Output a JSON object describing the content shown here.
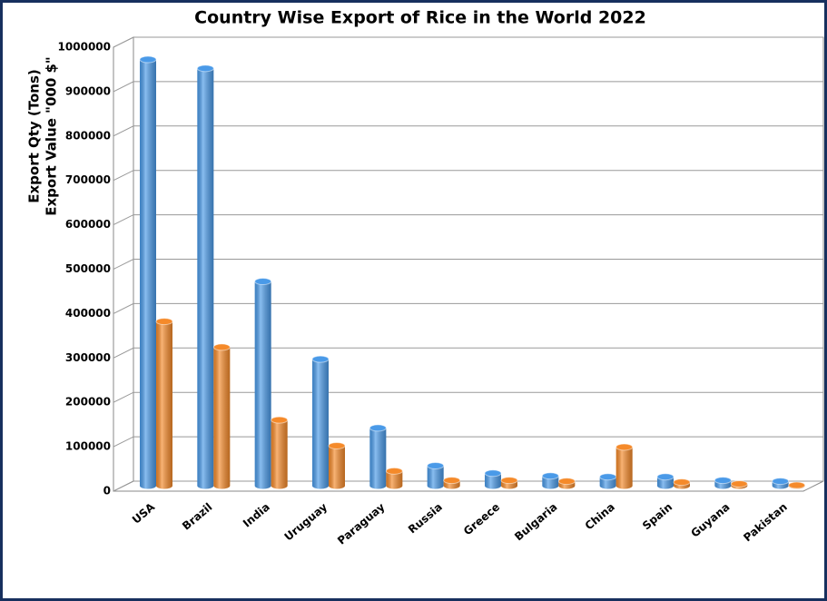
{
  "chart_data": {
    "type": "bar3d",
    "title": "Country Wise Export of Rice in the World 2022",
    "ylabel": [
      "Export Qty (Tons)",
      "Export Value \"000 $\""
    ],
    "categories": [
      "USA",
      "Brazil",
      "India",
      "Uruguay",
      "Paraguay",
      "Russia",
      "Greece",
      "Bulgaria",
      "China",
      "Spain",
      "Guyana",
      "Pakistan"
    ],
    "series": [
      {
        "color": "#4a9ae8",
        "values": [
          960000,
          940000,
          460000,
          285000,
          130000,
          45000,
          28000,
          22000,
          20000,
          20000,
          12000,
          10000
        ]
      },
      {
        "color": "#f58a2a",
        "values": [
          370000,
          312000,
          148000,
          90000,
          33000,
          12000,
          12000,
          10000,
          87000,
          8000,
          4000,
          1000
        ]
      }
    ],
    "ylim": [
      0,
      1000000
    ],
    "yticks": [
      0,
      100000,
      200000,
      300000,
      400000,
      500000,
      600000,
      700000,
      800000,
      900000,
      1000000
    ],
    "grid": true
  }
}
